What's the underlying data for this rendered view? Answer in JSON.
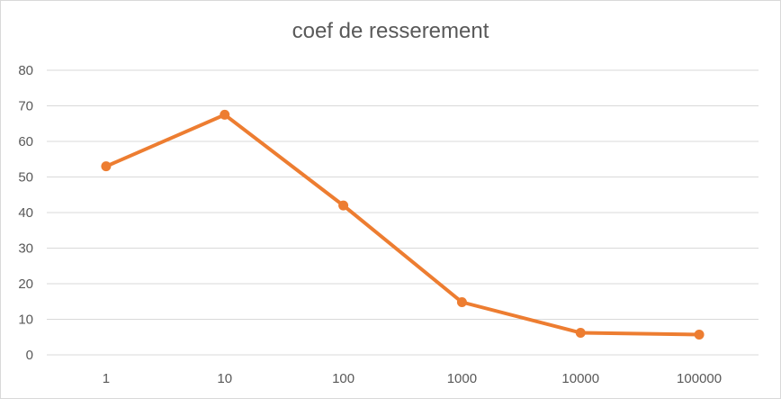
{
  "chart_data": {
    "type": "line",
    "title": "coef de resserement",
    "xlabel": "",
    "ylabel": "",
    "categories": [
      "1",
      "10",
      "100",
      "1000",
      "10000",
      "100000"
    ],
    "series": [
      {
        "values": [
          53,
          67.5,
          42,
          14.8,
          6.2,
          5.7
        ],
        "color": "#ed7d31"
      }
    ],
    "ylim": [
      0,
      80
    ],
    "yticks": [
      "0",
      "10",
      "20",
      "30",
      "40",
      "50",
      "60",
      "70",
      "80"
    ],
    "grid": true,
    "legend": "none",
    "colors": {
      "gridline": "#d9d9d9",
      "text": "#595959"
    }
  }
}
